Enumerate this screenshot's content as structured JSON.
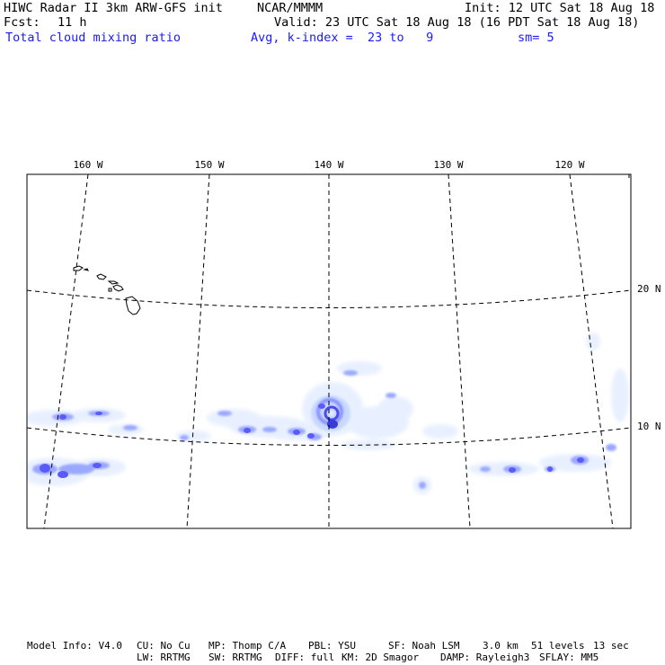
{
  "header": {
    "model_title": "HIWC Radar II 3km ARW-GFS init",
    "org": "NCAR/MMMM",
    "init": "Init: 12 UTC Sat 18 Aug 18",
    "fcst_label": "Fcst:",
    "fcst_value": "11 h",
    "valid": "Valid: 23 UTC Sat 18 Aug 18 (16 PDT Sat 18 Aug 18)",
    "field": "Total cloud mixing ratio",
    "avg": "Avg, k-index =  23 to   9",
    "smoothing": "sm= 5"
  },
  "map": {
    "longitude_labels": [
      "160 W",
      "150 W",
      "140 W",
      "130 W",
      "120 W"
    ],
    "latitude_labels": [
      "20 N",
      "10 N"
    ],
    "frame_color": "#000000",
    "grid_color": "#000000",
    "cloud_colors": [
      "#e8f0ff",
      "#c8d8ff",
      "#9aa8ff",
      "#5a5aff",
      "#2a2acc"
    ]
  },
  "footer": {
    "line1_a": "Model Info: V4.0",
    "line1_b": "CU: No Cu",
    "line1_c": "MP: Thomp C/A",
    "line1_d": "PBL: YSU",
    "line1_e": "SF: Noah LSM",
    "line1_f": "3.0 km",
    "line1_g": "51 levels",
    "line1_h": "13 sec",
    "line2_a": "LW: RRTMG",
    "line2_b": "SW: RRTMG",
    "line2_c": "DIFF: full",
    "line2_d": "KM: 2D Smagor",
    "line2_e": "DAMP: Rayleigh3",
    "line2_f": "SFLAY: MM5"
  }
}
